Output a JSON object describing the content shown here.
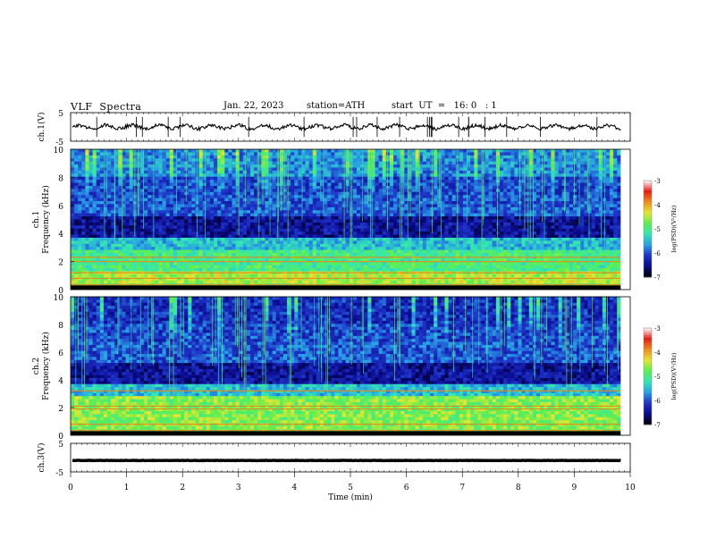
{
  "header": {
    "title": "VLF  Spectra",
    "date": "Jan. 22, 2023",
    "station": "station=ATH",
    "start": "start  UT  =   16: 0   : 1"
  },
  "chart_data": [
    {
      "type": "line",
      "name": "ch1-waveform",
      "ylabel": "ch.1(V)",
      "ylim": [
        -5,
        5
      ],
      "yticks": [
        "5",
        "-5"
      ],
      "xlim": [
        0,
        10
      ],
      "baseline": 0,
      "trace_color": "#000000"
    },
    {
      "type": "heatmap",
      "name": "ch1-spectrogram",
      "ylabel": "ch.1\nFrequency  (kHz)",
      "ylim": [
        0,
        10
      ],
      "yticks": [
        "0",
        "2",
        "4",
        "6",
        "8",
        "10"
      ],
      "xlim": [
        0,
        10
      ],
      "colorbar": {
        "label": "log(PSD)(V²/Hz)",
        "ticks": [
          "-3",
          "-4",
          "-5",
          "-6",
          "-7"
        ],
        "range": [
          -7,
          -3
        ]
      }
    },
    {
      "type": "heatmap",
      "name": "ch2-spectrogram",
      "ylabel": "ch.2\nFrequency  (kHz)",
      "ylim": [
        0,
        10
      ],
      "yticks": [
        "0",
        "2",
        "4",
        "6",
        "8",
        "10"
      ],
      "xlim": [
        0,
        10
      ],
      "colorbar": {
        "label": "log(PSD)(V²/Hz)",
        "ticks": [
          "-3",
          "-4",
          "-5",
          "-6",
          "-7"
        ],
        "range": [
          -7,
          -3
        ]
      }
    },
    {
      "type": "line",
      "name": "ch3-waveform",
      "ylabel": "ch.3(V)",
      "ylim": [
        -5,
        5
      ],
      "yticks": [
        "5",
        "-5"
      ],
      "xlim": [
        0,
        10
      ],
      "baseline": -1,
      "trace_color": "#000000"
    }
  ],
  "xaxis": {
    "label": "Time  (min)",
    "ticks": [
      "0",
      "1",
      "2",
      "3",
      "4",
      "5",
      "6",
      "7",
      "8",
      "9",
      "10"
    ],
    "data_end": 9.83
  },
  "colormap": [
    "#000000",
    "#0a0a8c",
    "#1e32c8",
    "#28a0e6",
    "#32e6b4",
    "#5af050",
    "#e6e632",
    "#f08c1e",
    "#e61e14",
    "#ffffff"
  ]
}
